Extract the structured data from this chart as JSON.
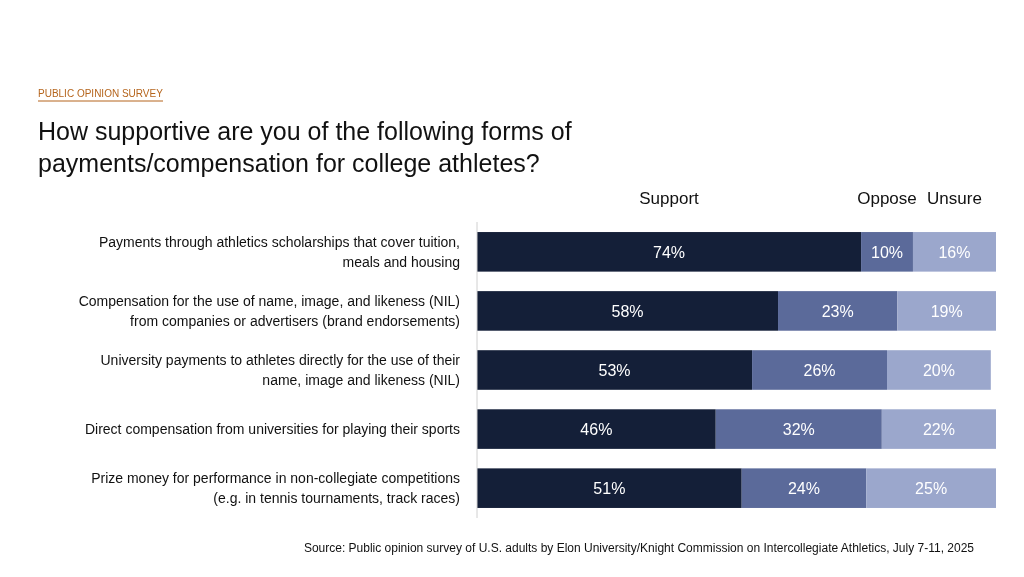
{
  "chart_data": {
    "type": "bar",
    "orientation": "horizontal",
    "stacked": true,
    "title": "How supportive are you of the following forms of payments/compensation for college athletes?",
    "subtitle": "PUBLIC OPINION SURVEY",
    "categories": [
      "Payments through athletics scholarships that cover tuition, meals and housing",
      "Compensation for the use of name, image, and likeness (NIL) from companies or advertisers (brand endorsements)",
      "University payments to athletes directly for the use of their name, image and likeness (NIL)",
      "Direct compensation from universities for playing their sports",
      "Prize money for performance in non-collegiate competitions (e.g. in tennis tournaments, track races)"
    ],
    "series": [
      {
        "name": "Support",
        "color": "#141f38",
        "values": [
          74,
          58,
          53,
          46,
          51
        ],
        "value_labels": [
          "74%",
          "58%",
          "53%",
          "46%",
          "51%"
        ]
      },
      {
        "name": "Oppose",
        "color": "#5b6a9a",
        "values": [
          10,
          23,
          26,
          32,
          24
        ],
        "value_labels": [
          "10%",
          "23%",
          "26%",
          "32%",
          "24%"
        ]
      },
      {
        "name": "Unsure",
        "color": "#9ba7cc",
        "values": [
          16,
          19,
          20,
          22,
          25
        ],
        "value_labels": [
          "16%",
          "19%",
          "20%",
          "22%",
          "25%"
        ]
      }
    ],
    "legend": "top",
    "annotations": [
      "Source: Public opinion survey of U.S. adults by Elon University/Knight Commission on Intercollegiate Athletics, July 7-11, 2025"
    ]
  }
}
